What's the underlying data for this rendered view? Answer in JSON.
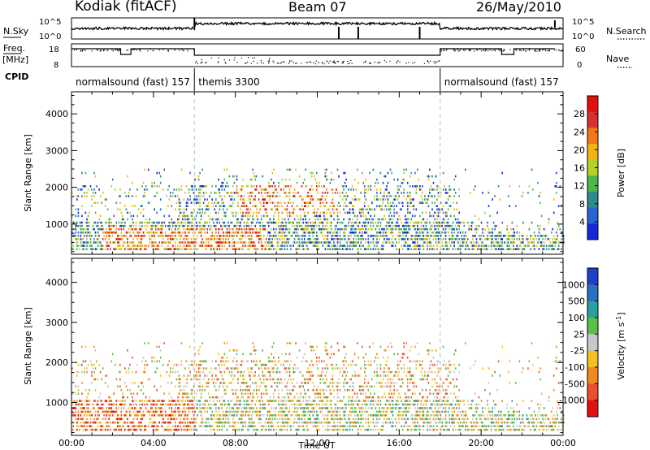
{
  "header": {
    "station": "Kodiak (fitACF)",
    "beam": "Beam 07",
    "date": "26/May/2010"
  },
  "top_panels": {
    "nsky_label": "N.Sky",
    "nsky_ticks": [
      "10^5",
      "10^0"
    ],
    "nsearch_label": "N.Search",
    "nsearch_ticks": [
      "10^5",
      "10^0"
    ],
    "freq_label_1": "Freq.",
    "freq_label_2": "[MHz]",
    "freq_ticks": [
      "18",
      "8"
    ],
    "nave_label": "Nave",
    "nave_ticks": [
      "60",
      "0"
    ],
    "cpid_label": "CPID",
    "modes": [
      {
        "name": "normalsound (fast) 157",
        "start": 0,
        "end": 6
      },
      {
        "name": "themis 3300",
        "start": 6,
        "end": 18
      },
      {
        "name": "normalsound (fast) 157",
        "start": 18,
        "end": 24
      }
    ]
  },
  "chart_data": [
    {
      "type": "heatmap",
      "name": "power",
      "xlabel": "Time UT",
      "ylabel": "Slant Range [km]",
      "xlim": [
        0,
        24
      ],
      "ylim": [
        180,
        4600
      ],
      "yticks": [
        "1000",
        "2000",
        "3000",
        "4000"
      ],
      "colorbar_label": "Power [dB]",
      "colorbar_ticks": [
        "4",
        "8",
        "12",
        "16",
        "20",
        "24",
        "28"
      ],
      "colorbar_colors": [
        "#1428d8",
        "#2a64d0",
        "#2f8a8a",
        "#4ab84a",
        "#b4d22a",
        "#f2b412",
        "#f07818",
        "#d83030",
        "#e01010"
      ],
      "colorbar_range": [
        0,
        32
      ]
    },
    {
      "type": "heatmap",
      "name": "velocity",
      "xlabel": "Time UT",
      "ylabel": "Slant Range [km]",
      "xlim": [
        0,
        24
      ],
      "ylim": [
        180,
        4600
      ],
      "yticks": [
        "1000",
        "2000",
        "3000",
        "4000"
      ],
      "colorbar_label": "Velocity [m s^-1]",
      "colorbar_ticks": [
        "1000",
        "500",
        "100",
        "25",
        "-25",
        "-100",
        "-500",
        "-1000"
      ],
      "colorbar_colors": [
        "#2040c8",
        "#2a70c0",
        "#2aa0a0",
        "#5ac04a",
        "#c8c8c8",
        "#f2c020",
        "#f08a20",
        "#e85030",
        "#e01010"
      ]
    }
  ],
  "xaxis": {
    "ticks": [
      "00:00",
      "04:00",
      "08:00",
      "12:00",
      "16:00",
      "20:00",
      "00:00"
    ],
    "title": "Time UT"
  }
}
